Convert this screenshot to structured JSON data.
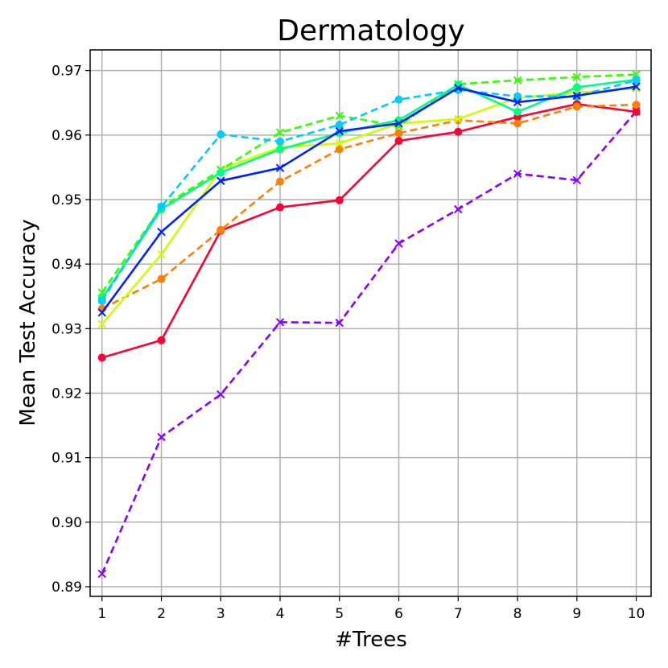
{
  "chart_data": {
    "type": "line",
    "title": "Dermatology",
    "xlabel": "#Trees",
    "ylabel": "Mean Test Accuracy",
    "x": [
      1,
      2,
      3,
      4,
      5,
      6,
      7,
      8,
      9,
      10
    ],
    "xlim": [
      0.8,
      10.25
    ],
    "ylim": [
      0.8885,
      0.9732
    ],
    "xticks": [
      "1",
      "2",
      "3",
      "4",
      "5",
      "6",
      "7",
      "8",
      "9",
      "10"
    ],
    "yticks": [
      "0.89",
      "0.90",
      "0.91",
      "0.92",
      "0.93",
      "0.94",
      "0.95",
      "0.96",
      "0.97"
    ],
    "grid": true,
    "legend": "none",
    "series": [
      {
        "name": "series-purple-dashed-x",
        "color": "#8a00ff",
        "dash": true,
        "marker": "x",
        "values": [
          0.892,
          0.9132,
          0.9198,
          0.931,
          0.9309,
          0.9432,
          0.9485,
          0.954,
          0.953,
          0.9637
        ]
      },
      {
        "name": "series-red-solid-dot",
        "color": "#ff0033",
        "dash": false,
        "marker": "circle",
        "values": [
          0.9255,
          0.9282,
          0.9452,
          0.9488,
          0.9499,
          0.9591,
          0.9605,
          0.9628,
          0.9648,
          0.9636
        ]
      },
      {
        "name": "series-orange-dashed-dot",
        "color": "#ff8000",
        "dash": true,
        "marker": "circle",
        "values": [
          0.9331,
          0.9377,
          0.9453,
          0.9528,
          0.9578,
          0.9603,
          0.9623,
          0.9618,
          0.9644,
          0.9647
        ]
      },
      {
        "name": "series-yellowgreen-solid-x",
        "color": "#ccff00",
        "dash": false,
        "marker": "x",
        "values": [
          0.9307,
          0.9415,
          0.9547,
          0.9581,
          0.9587,
          0.9618,
          0.9625,
          0.9658,
          0.9666,
          0.9672
        ]
      },
      {
        "name": "series-green-dashed-x",
        "color": "#33ff00",
        "dash": true,
        "marker": "x",
        "values": [
          0.9356,
          0.9488,
          0.9546,
          0.9604,
          0.963,
          0.9614,
          0.9679,
          0.9685,
          0.969,
          0.9694
        ]
      },
      {
        "name": "series-springgreen-solid-dot",
        "color": "#00ff80",
        "dash": false,
        "marker": "circle",
        "values": [
          0.9347,
          0.9485,
          0.9542,
          0.9578,
          0.9603,
          0.9623,
          0.9678,
          0.9636,
          0.9674,
          0.9686
        ]
      },
      {
        "name": "series-skyblue-dashed-dot",
        "color": "#00ccff",
        "dash": true,
        "marker": "circle",
        "values": [
          0.9343,
          0.9489,
          0.9601,
          0.959,
          0.9616,
          0.9655,
          0.967,
          0.966,
          0.966,
          0.9685
        ]
      },
      {
        "name": "series-blue-solid-x",
        "color": "#0022ff",
        "dash": false,
        "marker": "x",
        "values": [
          0.9325,
          0.945,
          0.9529,
          0.9549,
          0.9606,
          0.9618,
          0.9673,
          0.9651,
          0.9661,
          0.9675
        ]
      }
    ]
  }
}
